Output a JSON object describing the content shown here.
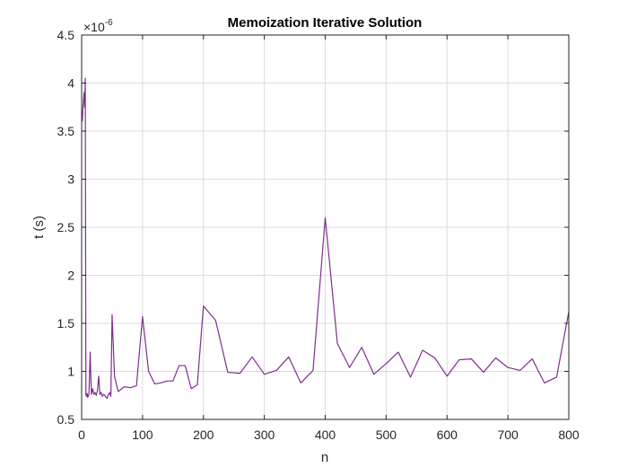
{
  "chart_data": {
    "type": "line",
    "title": "Memoization Iterative Solution",
    "xlabel": "n",
    "ylabel": "t (s)",
    "y_exponent_label": "×10",
    "y_exponent_power": "-6",
    "xlim": [
      0,
      800
    ],
    "ylim": [
      0.5,
      4.5
    ],
    "y_scale_factor": 1e-06,
    "grid": true,
    "x_ticks": [
      0,
      100,
      200,
      300,
      400,
      500,
      600,
      700,
      800
    ],
    "x_tick_labels": [
      "0",
      "100",
      "200",
      "300",
      "400",
      "500",
      "600",
      "700",
      "800"
    ],
    "y_ticks": [
      0.5,
      1,
      1.5,
      2,
      2.5,
      3,
      3.5,
      4,
      4.5
    ],
    "y_tick_labels": [
      "0.5",
      "1",
      "1.5",
      "2",
      "2.5",
      "3",
      "3.5",
      "4",
      "4.5"
    ],
    "series": [
      {
        "color": "#7e2f8e",
        "x": [
          1,
          2,
          3,
          4,
          5,
          6,
          7,
          8,
          9,
          10,
          12,
          14,
          16,
          18,
          20,
          22,
          24,
          26,
          28,
          30,
          32,
          34,
          36,
          38,
          40,
          42,
          44,
          46,
          48,
          50,
          54,
          60,
          70,
          80,
          90,
          100,
          110,
          120,
          130,
          140,
          150,
          160,
          170,
          180,
          190,
          200,
          220,
          240,
          260,
          280,
          300,
          320,
          340,
          360,
          380,
          400,
          420,
          440,
          460,
          480,
          500,
          520,
          540,
          560,
          580,
          600,
          620,
          640,
          660,
          680,
          700,
          720,
          740,
          760,
          780,
          800
        ],
        "y": [
          3.6,
          3.72,
          3.82,
          3.9,
          3.75,
          4.05,
          0.76,
          0.74,
          0.77,
          0.73,
          0.76,
          1.2,
          0.76,
          0.82,
          0.76,
          0.78,
          0.75,
          0.8,
          0.95,
          0.76,
          0.78,
          0.74,
          0.76,
          0.75,
          0.73,
          0.72,
          0.76,
          0.78,
          0.74,
          1.59,
          0.95,
          0.79,
          0.84,
          0.83,
          0.85,
          1.57,
          1.0,
          0.87,
          0.88,
          0.9,
          0.9,
          1.06,
          1.06,
          0.82,
          0.86,
          1.68,
          1.53,
          0.99,
          0.98,
          1.15,
          0.97,
          1.01,
          1.15,
          0.88,
          1.01,
          2.6,
          1.29,
          1.04,
          1.25,
          0.97,
          1.08,
          1.2,
          0.94,
          1.22,
          1.14,
          0.95,
          1.12,
          1.13,
          0.99,
          1.14,
          1.04,
          1.01,
          1.13,
          0.88,
          0.94,
          1.62
        ]
      }
    ]
  }
}
